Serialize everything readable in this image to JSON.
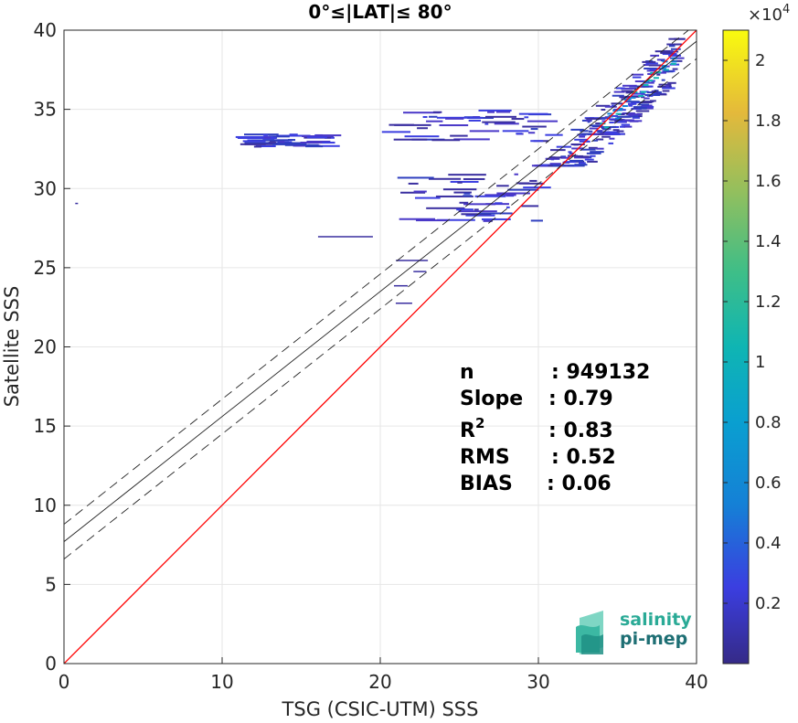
{
  "chart_data": {
    "type": "heatmap",
    "title": "0°≤|LAT|≤ 80°",
    "xlabel": "TSG (CSIC-UTM) SSS",
    "ylabel": "Satellite SSS",
    "xlim": [
      0,
      40
    ],
    "ylim": [
      0,
      40
    ],
    "xticks": [
      "0",
      "10",
      "20",
      "30",
      "40"
    ],
    "yticks": [
      "0",
      "5",
      "10",
      "15",
      "20",
      "25",
      "30",
      "35",
      "40"
    ],
    "grid": true,
    "identity_line": {
      "slope": 1,
      "intercept": 0,
      "color": "#ff0000"
    },
    "fit_line": {
      "slope": 0.79,
      "intercept": 7.7
    },
    "fit_band_offset": 1.1,
    "density_clusters": [
      {
        "x": [
          30,
          37
        ],
        "y": [
          31.5,
          36.5
        ]
      },
      {
        "x": [
          33,
          39
        ],
        "y": [
          33.5,
          39.5
        ]
      },
      {
        "x": [
          21,
          31
        ],
        "y": [
          33,
          35
        ]
      },
      {
        "x": [
          12,
          17
        ],
        "y": [
          32.7,
          33.5
        ]
      },
      {
        "x": [
          22,
          30
        ],
        "y": [
          28,
          31
        ]
      }
    ],
    "colorbar": {
      "multiplier": "×10",
      "exponent": "4",
      "ticks": [
        "0.2",
        "0.4",
        "0.6",
        "0.8",
        "1",
        "1.2",
        "1.4",
        "1.6",
        "1.8",
        "2"
      ],
      "min": 0,
      "max": 2.1,
      "colormap": "parula"
    },
    "stats": [
      {
        "label": "n",
        "value": ": 949132"
      },
      {
        "label": "Slope",
        "value": ": 0.79"
      },
      {
        "label": "R",
        "sup": "2",
        "value": ": 0.83"
      },
      {
        "label": "RMS",
        "value": ": 0.52"
      },
      {
        "label": "BIAS",
        "value": ": 0.06"
      }
    ]
  },
  "logo": {
    "line1": "salinity",
    "line2": "pi-mep",
    "color1": "#2aaa96",
    "color2": "#1e6f74"
  }
}
